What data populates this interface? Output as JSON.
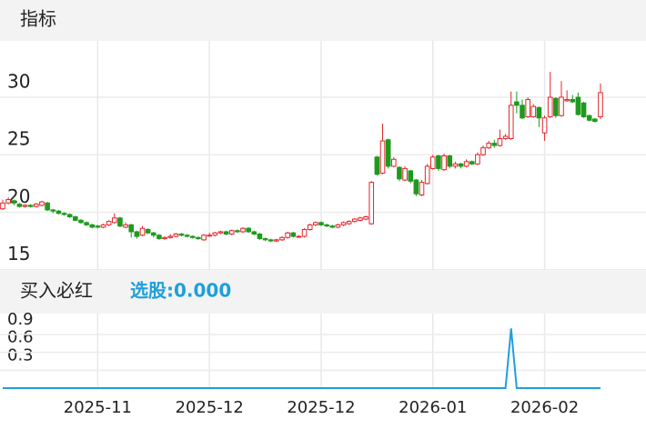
{
  "header": "指标",
  "chart_data": [
    {
      "type": "candlestick",
      "series": [
        {
          "open": [
            20.3,
            20.8,
            21.0,
            20.7,
            20.5,
            20.6,
            20.5,
            20.6,
            20.8,
            20.2,
            20.1,
            19.9,
            19.8,
            19.6,
            19.3,
            19.1,
            18.9,
            18.8,
            18.7,
            18.9,
            19.1,
            19.5,
            18.7,
            18.9,
            18.3,
            18.0,
            18.5,
            18.2,
            18.0,
            17.7,
            17.8,
            17.9,
            18.1,
            18.0,
            17.9,
            17.8,
            17.6,
            18.0,
            18.0,
            18.2,
            18.3,
            18.1,
            18.4,
            18.3,
            18.6,
            18.3,
            18.1,
            17.7,
            17.6,
            17.5,
            17.6,
            17.8,
            18.2,
            17.9,
            17.9,
            18.5,
            18.9,
            19.1,
            18.9,
            18.8,
            18.7,
            18.9,
            19.0,
            19.2,
            19.3,
            19.4,
            19.0,
            24.8,
            23.4,
            26.3,
            24.0,
            23.9,
            22.8,
            23.6,
            22.8,
            21.5,
            22.5,
            23.8,
            24.9,
            23.7,
            24.9,
            24.0,
            24.2,
            24.0,
            24.4,
            24.2,
            25.0,
            25.6,
            26.0,
            25.8,
            26.4,
            26.4,
            29.6,
            29.3,
            28.3,
            28.3,
            29.1,
            26.9,
            28.3,
            29.9,
            28.4,
            29.7,
            29.8,
            30.0,
            29.5,
            28.4,
            28.1,
            28.3
          ],
          "high": [
            21.1,
            21.3,
            21.1,
            20.8,
            20.7,
            20.7,
            20.8,
            21.0,
            20.9,
            20.3,
            20.2,
            20.0,
            19.9,
            19.7,
            19.4,
            19.2,
            19.0,
            18.9,
            19.0,
            19.3,
            19.9,
            19.6,
            19.1,
            19.0,
            18.4,
            18.8,
            18.6,
            18.3,
            18.1,
            17.9,
            18.1,
            18.2,
            18.2,
            18.1,
            18.0,
            17.9,
            18.1,
            18.2,
            18.3,
            18.4,
            18.4,
            18.5,
            18.5,
            18.7,
            18.7,
            18.4,
            18.2,
            17.8,
            17.7,
            17.7,
            17.9,
            18.3,
            18.3,
            18.0,
            18.6,
            19.0,
            19.2,
            19.2,
            19.0,
            18.9,
            19.0,
            19.2,
            19.3,
            19.5,
            19.6,
            19.7,
            22.7,
            24.9,
            27.7,
            26.4,
            24.8,
            24.0,
            24.0,
            23.7,
            22.9,
            22.8,
            24.2,
            25.0,
            25.0,
            25.1,
            25.0,
            24.4,
            24.3,
            24.6,
            24.5,
            25.2,
            25.8,
            26.2,
            26.3,
            27.2,
            26.8,
            30.5,
            30.5,
            29.8,
            30.0,
            29.4,
            29.2,
            28.4,
            32.2,
            30.0,
            31.4,
            30.6,
            30.2,
            30.4,
            29.6,
            28.5,
            28.2,
            31.2
          ],
          "low": [
            20.2,
            20.7,
            20.6,
            20.4,
            20.4,
            20.4,
            20.4,
            20.5,
            20.1,
            19.9,
            19.8,
            19.7,
            19.5,
            19.2,
            19.0,
            18.8,
            18.6,
            18.6,
            18.6,
            18.8,
            19.0,
            18.7,
            18.6,
            17.8,
            17.7,
            17.9,
            18.1,
            17.8,
            17.6,
            17.6,
            17.7,
            17.8,
            17.9,
            17.8,
            17.7,
            17.6,
            17.5,
            17.9,
            17.9,
            18.1,
            18.0,
            18.0,
            18.2,
            18.2,
            18.2,
            18.0,
            17.6,
            17.5,
            17.4,
            17.4,
            17.5,
            17.7,
            17.8,
            17.8,
            17.8,
            18.4,
            18.8,
            18.8,
            18.7,
            18.6,
            18.6,
            18.8,
            18.9,
            19.1,
            19.2,
            19.3,
            18.9,
            23.2,
            23.3,
            23.8,
            23.9,
            22.7,
            22.7,
            22.5,
            21.4,
            21.4,
            22.4,
            23.7,
            23.6,
            23.6,
            23.8,
            23.8,
            23.8,
            23.9,
            24.1,
            24.1,
            24.9,
            25.5,
            25.6,
            25.7,
            26.3,
            26.3,
            28.6,
            28.1,
            28.2,
            28.2,
            27.4,
            26.2,
            28.2,
            28.2,
            28.3,
            29.6,
            29.5,
            28.4,
            28.2,
            27.9,
            27.8,
            28.1
          ],
          "close": [
            20.8,
            21.1,
            20.8,
            20.5,
            20.6,
            20.5,
            20.7,
            20.9,
            20.2,
            20.1,
            19.9,
            19.8,
            19.6,
            19.3,
            19.1,
            18.9,
            18.7,
            18.7,
            18.9,
            19.2,
            19.5,
            18.8,
            18.9,
            18.3,
            17.9,
            18.6,
            18.2,
            18.0,
            17.7,
            17.8,
            17.9,
            18.1,
            18.0,
            17.9,
            17.8,
            17.7,
            18.0,
            18.0,
            18.2,
            18.3,
            18.1,
            18.4,
            18.3,
            18.6,
            18.3,
            18.1,
            17.7,
            17.6,
            17.5,
            17.6,
            17.8,
            18.2,
            17.9,
            17.9,
            18.5,
            18.9,
            19.1,
            18.9,
            18.8,
            18.7,
            18.9,
            19.1,
            19.2,
            19.4,
            19.5,
            19.6,
            22.6,
            23.3,
            26.2,
            24.0,
            24.6,
            22.9,
            23.8,
            22.7,
            21.6,
            22.6,
            24.0,
            24.8,
            23.8,
            24.9,
            24.0,
            24.2,
            24.0,
            24.4,
            24.2,
            25.0,
            25.6,
            26.0,
            25.8,
            26.4,
            26.6,
            29.3,
            29.3,
            28.2,
            29.8,
            29.2,
            28.2,
            28.2,
            30.0,
            28.4,
            30.0,
            29.8,
            29.6,
            28.5,
            28.3,
            28.0,
            27.9,
            30.4
          ]
        }
      ],
      "up_color": "#e3262b",
      "down_color": "#1e9a1e",
      "ylim": [
        14.9,
        34.9
      ],
      "yticks": [
        15,
        20,
        25,
        30
      ],
      "grid": true
    },
    {
      "type": "line",
      "title": "买入必红",
      "subtitle": "选股:0.000",
      "categories": [
        null,
        null,
        null,
        null,
        null,
        null,
        null,
        null,
        null,
        null,
        null,
        null,
        null,
        null,
        null,
        null,
        null,
        "2025-11",
        null,
        null,
        null,
        null,
        null,
        null,
        null,
        null,
        null,
        null,
        null,
        null,
        null,
        null,
        null,
        null,
        null,
        null,
        null,
        "2025-12",
        null,
        null,
        null,
        null,
        null,
        null,
        null,
        null,
        null,
        null,
        null,
        null,
        null,
        null,
        null,
        null,
        null,
        null,
        null,
        "2025-12",
        null,
        null,
        null,
        null,
        null,
        null,
        null,
        null,
        null,
        null,
        null,
        null,
        null,
        null,
        null,
        null,
        null,
        null,
        null,
        "2026-01",
        null,
        null,
        null,
        null,
        null,
        null,
        null,
        null,
        null,
        null,
        null,
        null,
        null,
        null,
        null,
        null,
        null,
        null,
        null,
        "2026-02",
        null,
        null,
        null,
        null,
        null,
        null,
        null,
        null,
        null,
        null
      ],
      "series": [
        {
          "color": "#1ea0dc",
          "values": [
            0,
            0,
            0,
            0,
            0,
            0,
            0,
            0,
            0,
            0,
            0,
            0,
            0,
            0,
            0,
            0,
            0,
            0,
            0,
            0,
            0,
            0,
            0,
            0,
            0,
            0,
            0,
            0,
            0,
            0,
            0,
            0,
            0,
            0,
            0,
            0,
            0,
            0,
            0,
            0,
            0,
            0,
            0,
            0,
            0,
            0,
            0,
            0,
            0,
            0,
            0,
            0,
            0,
            0,
            0,
            0,
            0,
            0,
            0,
            0,
            0,
            0,
            0,
            0,
            0,
            0,
            0,
            0,
            0,
            0,
            0,
            0,
            0,
            0,
            0,
            0,
            0,
            0,
            0,
            0,
            0,
            0,
            0,
            0,
            0,
            0,
            0,
            0,
            0,
            0,
            0,
            1,
            0,
            0,
            0,
            0,
            0,
            0,
            0,
            0,
            0,
            0,
            0,
            0,
            0,
            0,
            0,
            0
          ]
        }
      ],
      "ylim": [
        0,
        1.25
      ],
      "yticks": [
        0.3,
        0.6,
        0.9
      ],
      "grid": true
    }
  ]
}
